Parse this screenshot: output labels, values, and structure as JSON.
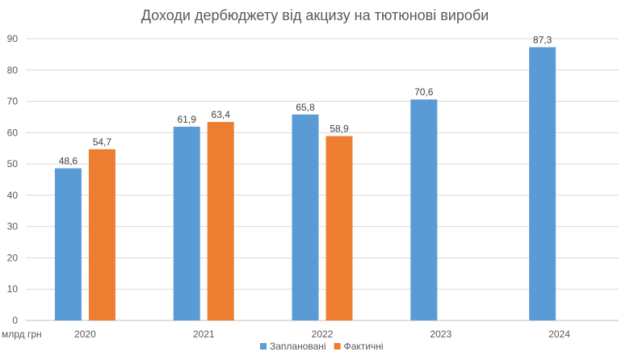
{
  "chart_data": {
    "type": "bar",
    "title": "Доходи дербюджету від акцизу на тютюнові вироби",
    "ylabel": "млрд грн",
    "xlabel": "",
    "categories": [
      "2020",
      "2021",
      "2022",
      "2023",
      "2024"
    ],
    "series": [
      {
        "name": "Заплановані",
        "color": "#5B9BD5",
        "values": [
          48.6,
          61.9,
          65.8,
          70.6,
          87.3
        ],
        "labels": [
          "48,6",
          "61,9",
          "65,8",
          "70,6",
          "87,3"
        ]
      },
      {
        "name": "Фактичні",
        "color": "#ED7D31",
        "values": [
          54.7,
          63.4,
          58.9,
          null,
          null
        ],
        "labels": [
          "54,7",
          "63,4",
          "58,9",
          "",
          ""
        ]
      }
    ],
    "ylim": [
      0,
      90
    ],
    "yticks": [
      0,
      10,
      20,
      30,
      40,
      50,
      60,
      70,
      80,
      90
    ],
    "grid": true,
    "legend_position": "bottom"
  }
}
